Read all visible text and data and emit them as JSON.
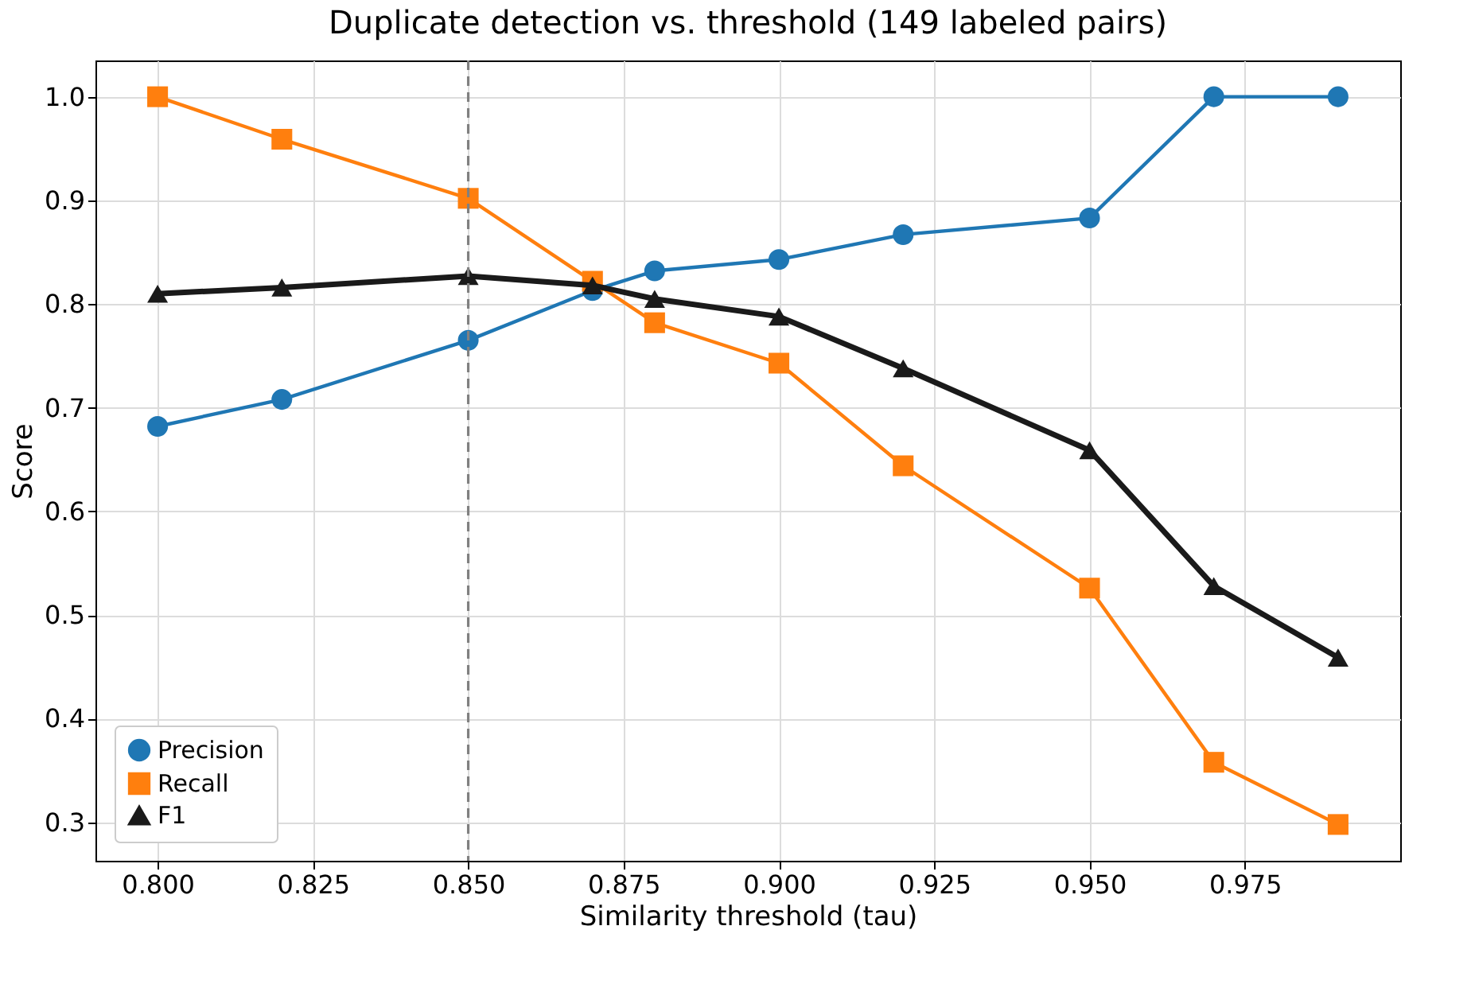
{
  "chart_data": {
    "type": "line",
    "title": "Duplicate detection vs. threshold (149 labeled pairs)",
    "xlabel": "Similarity threshold (tau)",
    "ylabel": "Score",
    "x": [
      0.8,
      0.82,
      0.85,
      0.87,
      0.88,
      0.9,
      0.92,
      0.95,
      0.97,
      0.99
    ],
    "series": [
      {
        "name": "Precision",
        "color": "#1f77b4",
        "marker": "circle",
        "values": [
          0.682,
          0.708,
          0.765,
          0.813,
          0.832,
          0.843,
          0.867,
          0.883,
          1.0,
          1.0
        ]
      },
      {
        "name": "Recall",
        "color": "#ff7f0e",
        "marker": "square",
        "values": [
          1.0,
          0.959,
          0.902,
          0.822,
          0.782,
          0.743,
          0.644,
          0.526,
          0.358,
          0.298
        ]
      },
      {
        "name": "F1",
        "color": "#1a1a1a",
        "marker": "triangle",
        "values": [
          0.81,
          0.816,
          0.827,
          0.818,
          0.805,
          0.788,
          0.738,
          0.659,
          0.528,
          0.459
        ]
      }
    ],
    "xlim": [
      0.79,
      1.0
    ],
    "ylim": [
      0.263,
      1.035
    ],
    "xticks": [
      {
        "value": 0.8,
        "label": "0.800"
      },
      {
        "value": 0.825,
        "label": "0.825"
      },
      {
        "value": 0.85,
        "label": "0.850"
      },
      {
        "value": 0.875,
        "label": "0.875"
      },
      {
        "value": 0.9,
        "label": "0.900"
      },
      {
        "value": 0.925,
        "label": "0.925"
      },
      {
        "value": 0.95,
        "label": "0.950"
      },
      {
        "value": 0.975,
        "label": "0.975"
      }
    ],
    "yticks": [
      {
        "value": 0.3,
        "label": "0.3"
      },
      {
        "value": 0.4,
        "label": "0.4"
      },
      {
        "value": 0.5,
        "label": "0.5"
      },
      {
        "value": 0.6,
        "label": "0.6"
      },
      {
        "value": 0.7,
        "label": "0.7"
      },
      {
        "value": 0.8,
        "label": "0.8"
      },
      {
        "value": 0.9,
        "label": "0.9"
      },
      {
        "value": 1,
        "label": "1.0"
      }
    ],
    "ref_lines": [
      {
        "axis": "x",
        "value": 0.85,
        "color": "#808080",
        "line_style": "dashed"
      }
    ],
    "grid": true,
    "legend": "bottom left"
  }
}
